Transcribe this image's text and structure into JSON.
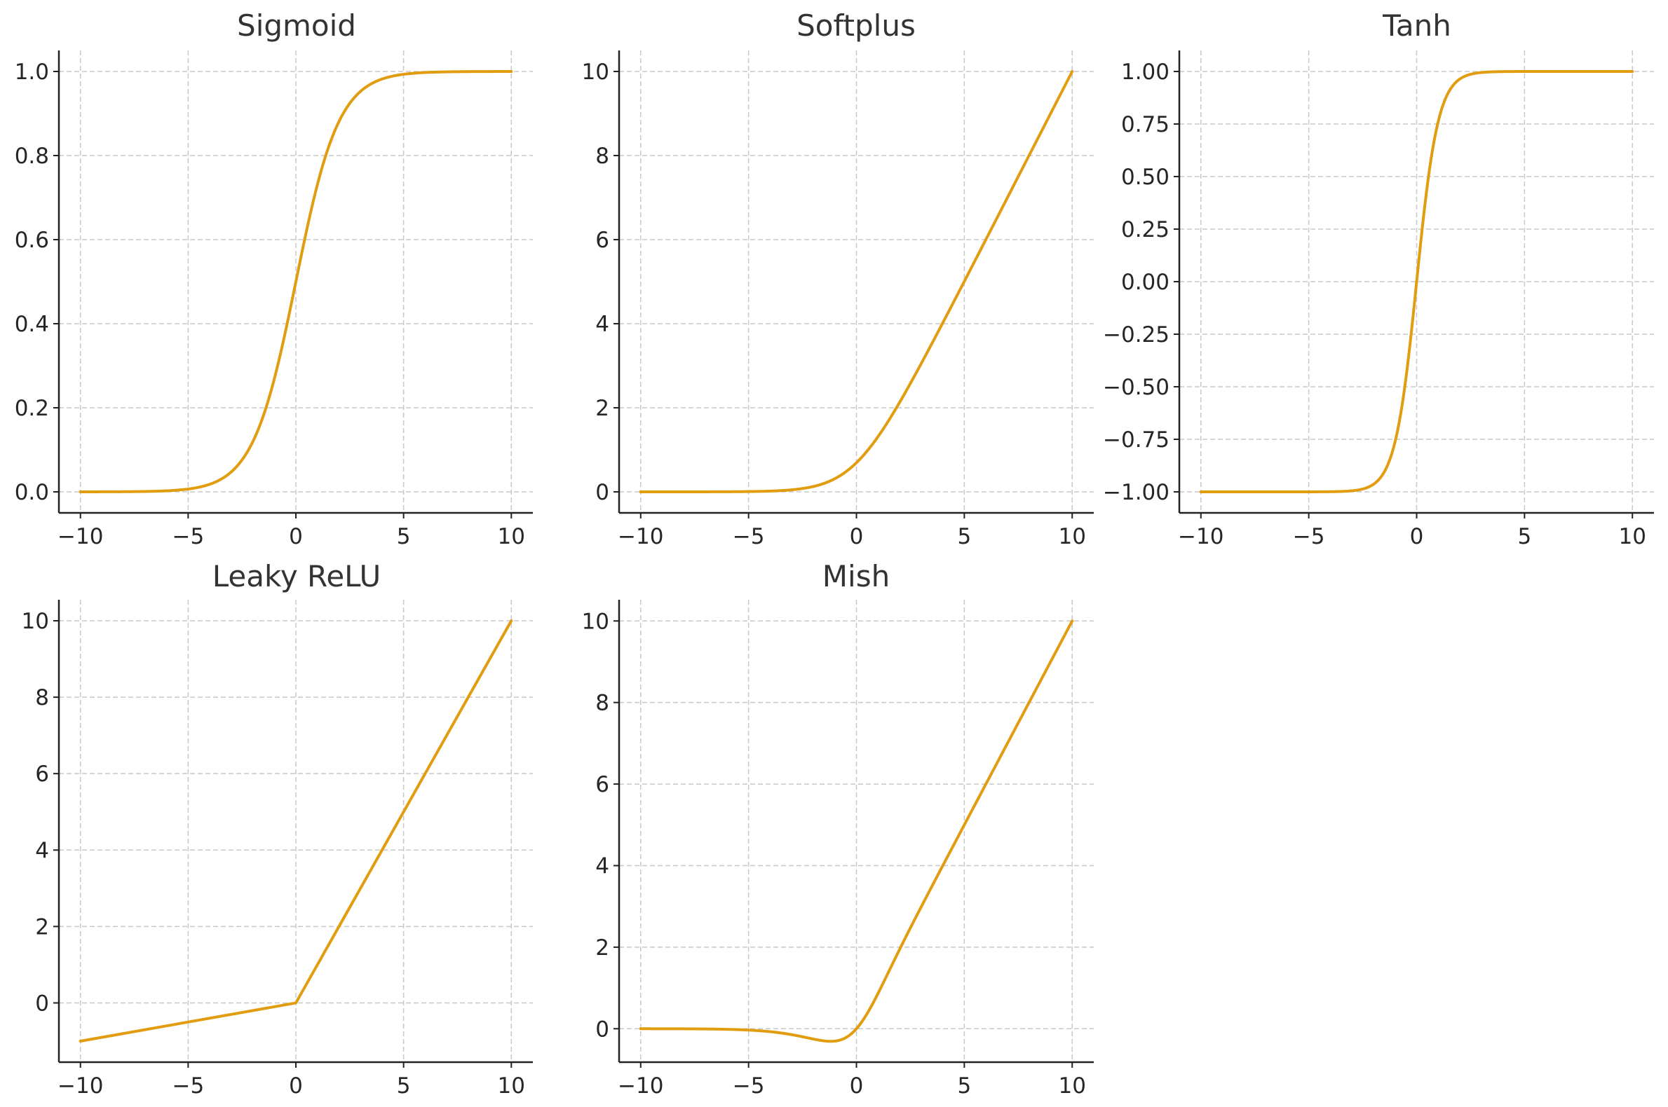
{
  "colors": {
    "series": "#e19c10",
    "grid": "#c8c8c8",
    "axis": "#222222"
  },
  "chart_data": [
    {
      "type": "line",
      "title": "Sigmoid",
      "function": "sigmoid",
      "xlabel": "",
      "ylabel": "",
      "xlim": [
        -11,
        11
      ],
      "ylim": [
        -0.05,
        1.05
      ],
      "xticks": [
        -10,
        -5,
        0,
        5,
        10
      ],
      "yticks": [
        0.0,
        0.2,
        0.4,
        0.6,
        0.8,
        1.0
      ],
      "xtick_labels": [
        "−10",
        "−5",
        "0",
        "5",
        "10"
      ],
      "ytick_labels": [
        "0.0",
        "0.2",
        "0.4",
        "0.6",
        "0.8",
        "1.0"
      ],
      "grid": true,
      "series": [
        {
          "x": [
            -10,
            -8,
            -6,
            -5,
            -4,
            -3,
            -2,
            -1,
            0,
            1,
            2,
            3,
            4,
            5,
            6,
            8,
            10
          ],
          "y": [
            4.54e-05,
            0.000335,
            0.00247,
            0.00669,
            0.018,
            0.0474,
            0.119,
            0.269,
            0.5,
            0.731,
            0.881,
            0.953,
            0.982,
            0.993,
            0.998,
            0.9997,
            0.99995
          ]
        }
      ]
    },
    {
      "type": "line",
      "title": "Softplus",
      "function": "softplus",
      "xlabel": "",
      "ylabel": "",
      "xlim": [
        -11,
        11
      ],
      "ylim": [
        -0.5,
        10.5
      ],
      "xticks": [
        -10,
        -5,
        0,
        5,
        10
      ],
      "yticks": [
        0,
        2,
        4,
        6,
        8,
        10
      ],
      "xtick_labels": [
        "−10",
        "−5",
        "0",
        "5",
        "10"
      ],
      "ytick_labels": [
        "0",
        "2",
        "4",
        "6",
        "8",
        "10"
      ],
      "grid": true,
      "series": [
        {
          "x": [
            -10,
            -8,
            -6,
            -4,
            -3,
            -2,
            -1,
            0,
            1,
            2,
            3,
            4,
            5,
            6,
            8,
            10
          ],
          "y": [
            4.54e-05,
            0.000335,
            0.00248,
            0.0181,
            0.0486,
            0.127,
            0.313,
            0.693,
            1.313,
            2.127,
            3.049,
            4.018,
            5.007,
            6.002,
            8.0003,
            10.00005
          ]
        }
      ]
    },
    {
      "type": "line",
      "title": "Tanh",
      "function": "tanh",
      "xlabel": "",
      "ylabel": "",
      "xlim": [
        -11,
        11
      ],
      "ylim": [
        -1.1,
        1.1
      ],
      "xticks": [
        -10,
        -5,
        0,
        5,
        10
      ],
      "yticks": [
        -1.0,
        -0.75,
        -0.5,
        -0.25,
        0.0,
        0.25,
        0.5,
        0.75,
        1.0
      ],
      "xtick_labels": [
        "−10",
        "−5",
        "0",
        "5",
        "10"
      ],
      "ytick_labels": [
        "−1.00",
        "−0.75",
        "−0.50",
        "−0.25",
        "0.00",
        "0.25",
        "0.50",
        "0.75",
        "1.00"
      ],
      "grid": true,
      "series": [
        {
          "x": [
            -10,
            -5,
            -3,
            -2,
            -1.5,
            -1,
            -0.5,
            0,
            0.5,
            1,
            1.5,
            2,
            3,
            5,
            10
          ],
          "y": [
            -1.0,
            -0.9999,
            -0.995,
            -0.964,
            -0.905,
            -0.762,
            -0.462,
            0.0,
            0.462,
            0.762,
            0.905,
            0.964,
            0.995,
            0.9999,
            1.0
          ]
        }
      ]
    },
    {
      "type": "line",
      "title": "Leaky ReLU",
      "function": "leaky_relu",
      "xlabel": "",
      "ylabel": "",
      "xlim": [
        -11,
        11
      ],
      "ylim": [
        -1.55,
        10.55
      ],
      "xticks": [
        -10,
        -5,
        0,
        5,
        10
      ],
      "yticks": [
        0,
        2,
        4,
        6,
        8,
        10
      ],
      "xtick_labels": [
        "−10",
        "−5",
        "0",
        "5",
        "10"
      ],
      "ytick_labels": [
        "0",
        "2",
        "4",
        "6",
        "8",
        "10"
      ],
      "grid": true,
      "series": [
        {
          "x": [
            -10,
            0,
            10
          ],
          "y": [
            -1.0,
            0.0,
            10.0
          ]
        }
      ]
    },
    {
      "type": "line",
      "title": "Mish",
      "function": "mish",
      "xlabel": "",
      "ylabel": "",
      "xlim": [
        -11,
        11
      ],
      "ylim": [
        -0.82,
        10.52
      ],
      "xticks": [
        -10,
        -5,
        0,
        5,
        10
      ],
      "yticks": [
        0,
        2,
        4,
        6,
        8,
        10
      ],
      "xtick_labels": [
        "−10",
        "−5",
        "0",
        "5",
        "10"
      ],
      "ytick_labels": [
        "0",
        "2",
        "4",
        "6",
        "8",
        "10"
      ],
      "grid": true,
      "series": [
        {
          "x": [
            -10,
            -8,
            -6,
            -5,
            -4,
            -3,
            -2,
            -1.2,
            -1,
            0,
            1,
            2,
            3,
            4,
            5,
            6,
            8,
            10
          ],
          "y": [
            -0.000454,
            -0.00268,
            -0.0149,
            -0.0336,
            -0.0725,
            -0.146,
            -0.252,
            -0.309,
            -0.303,
            0.0,
            0.865,
            1.944,
            2.987,
            3.997,
            4.999,
            6.0,
            8.0,
            10.0
          ]
        }
      ]
    }
  ]
}
